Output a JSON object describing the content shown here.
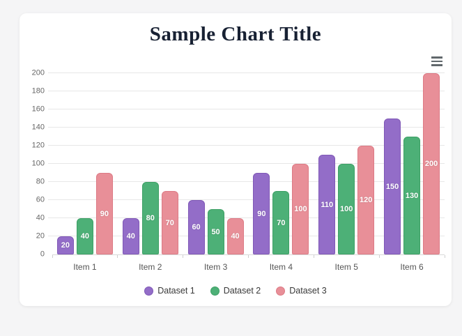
{
  "page": {
    "background_color": "#f5f5f6",
    "card_color": "#ffffff"
  },
  "header": {
    "title": "Sample Chart Title",
    "title_color": "#182133"
  },
  "icons": {
    "menu": "hamburger-menu"
  },
  "chart_data": {
    "type": "bar",
    "title": "Sample Chart Title",
    "categories": [
      "Item 1",
      "Item 2",
      "Item 3",
      "Item 4",
      "Item 5",
      "Item 6"
    ],
    "series": [
      {
        "name": "Dataset 1",
        "color": "#936dc8",
        "border_color": "#7f58b6",
        "values": [
          20,
          40,
          60,
          90,
          110,
          150
        ]
      },
      {
        "name": "Dataset 2",
        "color": "#4db077",
        "border_color": "#3da065",
        "values": [
          40,
          80,
          50,
          70,
          100,
          130
        ]
      },
      {
        "name": "Dataset 3",
        "color": "#e88f98",
        "border_color": "#dd7a85",
        "values": [
          90,
          70,
          40,
          100,
          120,
          200
        ]
      }
    ],
    "xlabel": "",
    "ylabel": "",
    "ylim": [
      0,
      200
    ],
    "yticks": [
      0,
      20,
      40,
      60,
      80,
      100,
      120,
      140,
      160,
      180,
      200
    ],
    "grid": true,
    "grid_color": "#e7e7e7",
    "tick_label_color": "#666666",
    "data_labels": "values-centered-white-bold",
    "legend_position": "bottom",
    "legend_marker": "circle"
  }
}
